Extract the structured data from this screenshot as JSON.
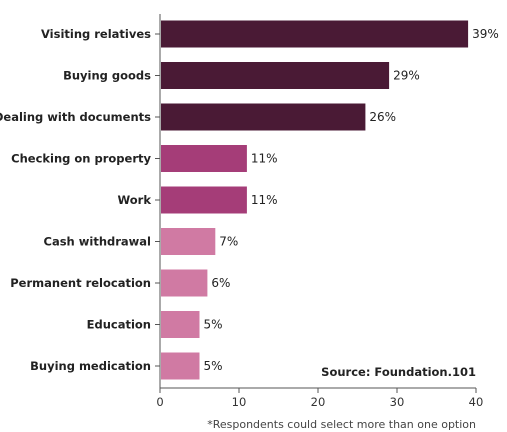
{
  "chart_data": {
    "type": "bar",
    "orientation": "horizontal",
    "categories": [
      "Visiting relatives",
      "Buying goods",
      "Dealing with documents",
      "Checking on property",
      "Work",
      "Cash withdrawal",
      "Permanent relocation",
      "Education",
      "Buying medication"
    ],
    "values": [
      39,
      29,
      26,
      11,
      11,
      7,
      6,
      5,
      5
    ],
    "value_labels": [
      "39%",
      "29%",
      "26%",
      "11%",
      "11%",
      "7%",
      "6%",
      "5%",
      "5%"
    ],
    "bar_colors": [
      "#4a1a35",
      "#4a1a35",
      "#4a1a35",
      "#a53d78",
      "#a53d78",
      "#d07aa3",
      "#d07aa3",
      "#d07aa3",
      "#d07aa3"
    ],
    "x_ticks": [
      "0",
      "10",
      "20",
      "30",
      "40"
    ],
    "xlim": [
      0,
      40
    ],
    "grid": false,
    "source": "Source: Foundation.101",
    "footnote": "*Respondents could select more than one option"
  }
}
